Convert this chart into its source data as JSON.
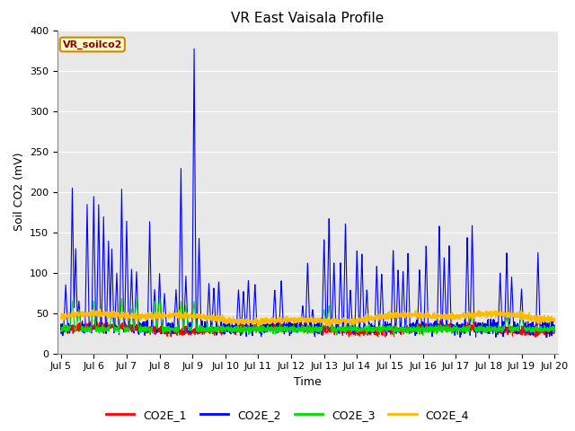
{
  "title": "VR East Vaisala Profile",
  "xlabel": "Time",
  "ylabel": "Soil CO2 (mV)",
  "annotation": "VR_soilco2",
  "ylim": [
    0,
    400
  ],
  "yticks": [
    0,
    50,
    100,
    150,
    200,
    250,
    300,
    350,
    400
  ],
  "xtick_labels": [
    "Jul 5",
    "Jul 6",
    "Jul 7",
    "Jul 8",
    "Jul 9",
    "Jul 10",
    "Jul 11",
    "Jul 12",
    "Jul 13",
    "Jul 14",
    "Jul 15",
    "Jul 16",
    "Jul 17",
    "Jul 18",
    "Jul 19",
    "Jul 20"
  ],
  "colors": {
    "CO2E_1": "#ff0000",
    "CO2E_2": "#0000ff",
    "CO2E_3": "#00dd00",
    "CO2E_4": "#ffbb00"
  },
  "plot_bg_color": "#e8e8e8",
  "fig_bg_color": "#ffffff",
  "grid_color": "#ffffff",
  "linewidth": 0.8,
  "n_points": 3000,
  "title_fontsize": 11,
  "label_fontsize": 9,
  "tick_fontsize": 8,
  "legend_fontsize": 9
}
